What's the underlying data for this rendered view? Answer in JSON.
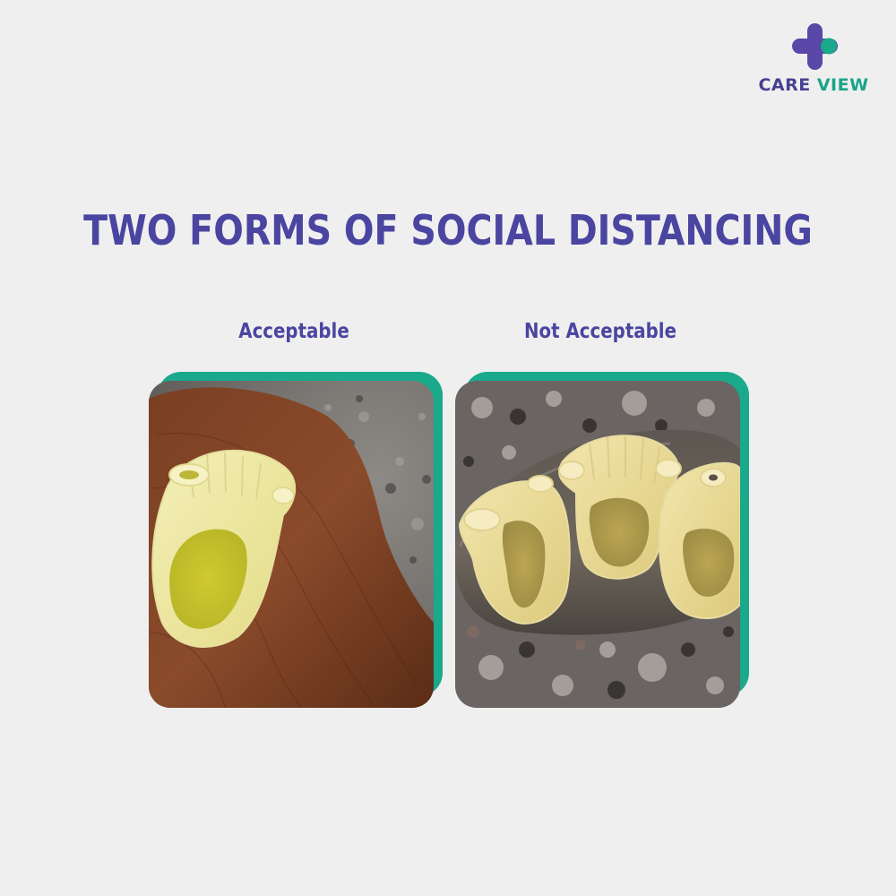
{
  "logo": {
    "word_care": "CARE",
    "word_view": "VIEW",
    "mark_icon": "medical-cross-icon",
    "colors": {
      "purple": "#464092",
      "teal": "#19a489"
    }
  },
  "heading": {
    "title": "TWO FORMS OF SOCIAL DISTANCING",
    "color": "#4a45a0"
  },
  "panels": [
    {
      "caption": "Acceptable",
      "photo": "single-pasta-shell-on-wooden-spoon"
    },
    {
      "caption": "Not Acceptable",
      "photo": "three-pasta-shells-on-metal-spoon"
    }
  ],
  "colors": {
    "background": "#efefef",
    "frame": "#1aa98a"
  }
}
